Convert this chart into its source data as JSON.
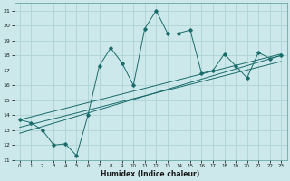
{
  "xlabel": "Humidex (Indice chaleur)",
  "bg_color": "#cce8ea",
  "grid_color": "#afd4d6",
  "line_color": "#1a6b6b",
  "x_data": [
    0,
    1,
    2,
    3,
    4,
    5,
    6,
    7,
    8,
    9,
    10,
    11,
    12,
    13,
    14,
    15,
    16,
    17,
    18,
    19,
    20,
    21,
    22,
    23
  ],
  "y_main": [
    13.7,
    13.5,
    13.0,
    12.0,
    12.1,
    11.3,
    14.0,
    17.3,
    18.5,
    17.5,
    16.0,
    19.8,
    21.0,
    19.5,
    19.5,
    19.7,
    16.8,
    17.0,
    18.1,
    17.3,
    16.5,
    18.2,
    17.8,
    18.0
  ],
  "ylim": [
    11,
    21.5
  ],
  "xlim": [
    -0.5,
    23.5
  ],
  "yticks": [
    11,
    12,
    13,
    14,
    15,
    16,
    17,
    18,
    19,
    20,
    21
  ],
  "xticks": [
    0,
    1,
    2,
    3,
    4,
    5,
    6,
    7,
    8,
    9,
    10,
    11,
    12,
    13,
    14,
    15,
    16,
    17,
    18,
    19,
    20,
    21,
    22,
    23
  ],
  "reg_lines": [
    {
      "x0": 0,
      "y0": 13.7,
      "x1": 23,
      "y1": 18.1
    },
    {
      "x0": 0,
      "y0": 13.2,
      "x1": 23,
      "y1": 17.6
    },
    {
      "x0": 0,
      "y0": 12.8,
      "x1": 23,
      "y1": 18.0
    }
  ]
}
